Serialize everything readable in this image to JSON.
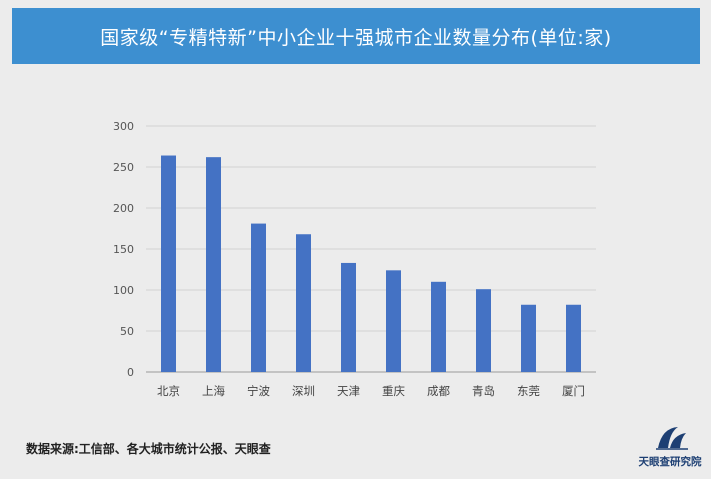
{
  "header": {
    "title": "国家级“专精特新”中小企业十强城市企业数量分布(单位:家)"
  },
  "chart_data": {
    "type": "bar",
    "title": "国家级“专精特新”中小企业十强城市企业数量分布(单位:家)",
    "categories": [
      "北京",
      "上海",
      "宁波",
      "深圳",
      "天津",
      "重庆",
      "成都",
      "青岛",
      "东莞",
      "厦门"
    ],
    "values": [
      264,
      262,
      181,
      168,
      133,
      124,
      110,
      101,
      82,
      82
    ],
    "ylim": [
      0,
      300
    ],
    "yticks": [
      0,
      50,
      100,
      150,
      200,
      250,
      300
    ],
    "xlabel": "",
    "ylabel": "",
    "grid": true,
    "bar_color": "#4472c4"
  },
  "footer": {
    "source": "数据来源:工信部、各大城市统计公报、天眼查"
  },
  "logo": {
    "text": "天眼查研究院"
  },
  "colors": {
    "header_bg": "#3d8fd0",
    "background": "#ececec",
    "bar": "#4472c4",
    "logo": "#1d3f73"
  }
}
